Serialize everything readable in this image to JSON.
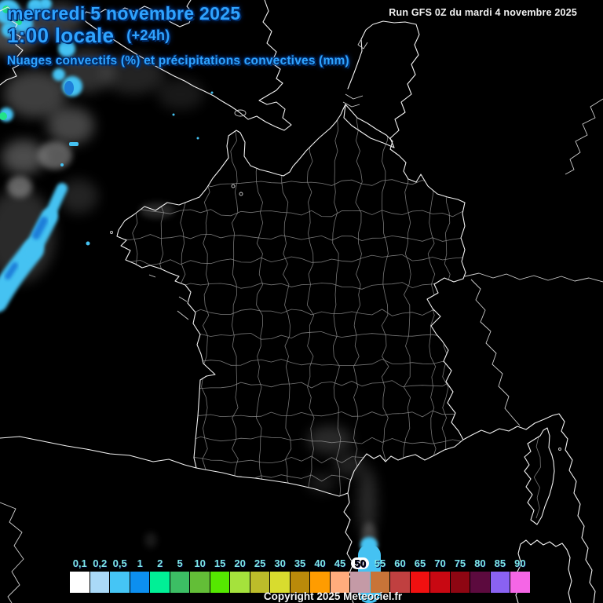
{
  "header": {
    "date": "mercredi 5 novembre 2025",
    "time": "1:00 locale",
    "forecast_offset": "(+24h)",
    "subtitle": "Nuages convectifs (%) et précipitations convectives (mm)",
    "run_info": "Run GFS 0Z du mardi 4 novembre 2025"
  },
  "legend": {
    "unit_values": [
      "0,1",
      "0,2",
      "0,5",
      "1",
      "2",
      "5",
      "10",
      "15",
      "20",
      "25",
      "30",
      "35",
      "40",
      "45",
      "50",
      "55",
      "60",
      "65",
      "70",
      "75",
      "80",
      "85",
      "90"
    ],
    "colors": [
      "#FFFFFF",
      "#AAD9F7",
      "#45C5F5",
      "#0C8FF0",
      "#00F096",
      "#3CBE64",
      "#63BE37",
      "#55E800",
      "#A5E23C",
      "#BCBC2A",
      "#D8DC2E",
      "#BA8A0A",
      "#FF9C00",
      "#FFAC7C",
      "#C49AA6",
      "#C87438",
      "#C04040",
      "#F01010",
      "#C80812",
      "#8E0612",
      "#5C0A3E",
      "#8A62F2",
      "#F566E6"
    ],
    "highlighted_value": "50",
    "label_color": "#7DE8E8"
  },
  "footer": {
    "copyright": "Copyright 2025 Meteociel.fr"
  },
  "map": {
    "background_color": "#000000",
    "coastline_color": "#F2F2F2",
    "department_border_color": "#8C8C8C",
    "title_color": "#2FA3FF",
    "precipitation_light": "#45C2F2",
    "precipitation_dark": "#1E7FD9",
    "precipitation_green": "#22E388",
    "cloud_gray": "#8A8A8A"
  }
}
